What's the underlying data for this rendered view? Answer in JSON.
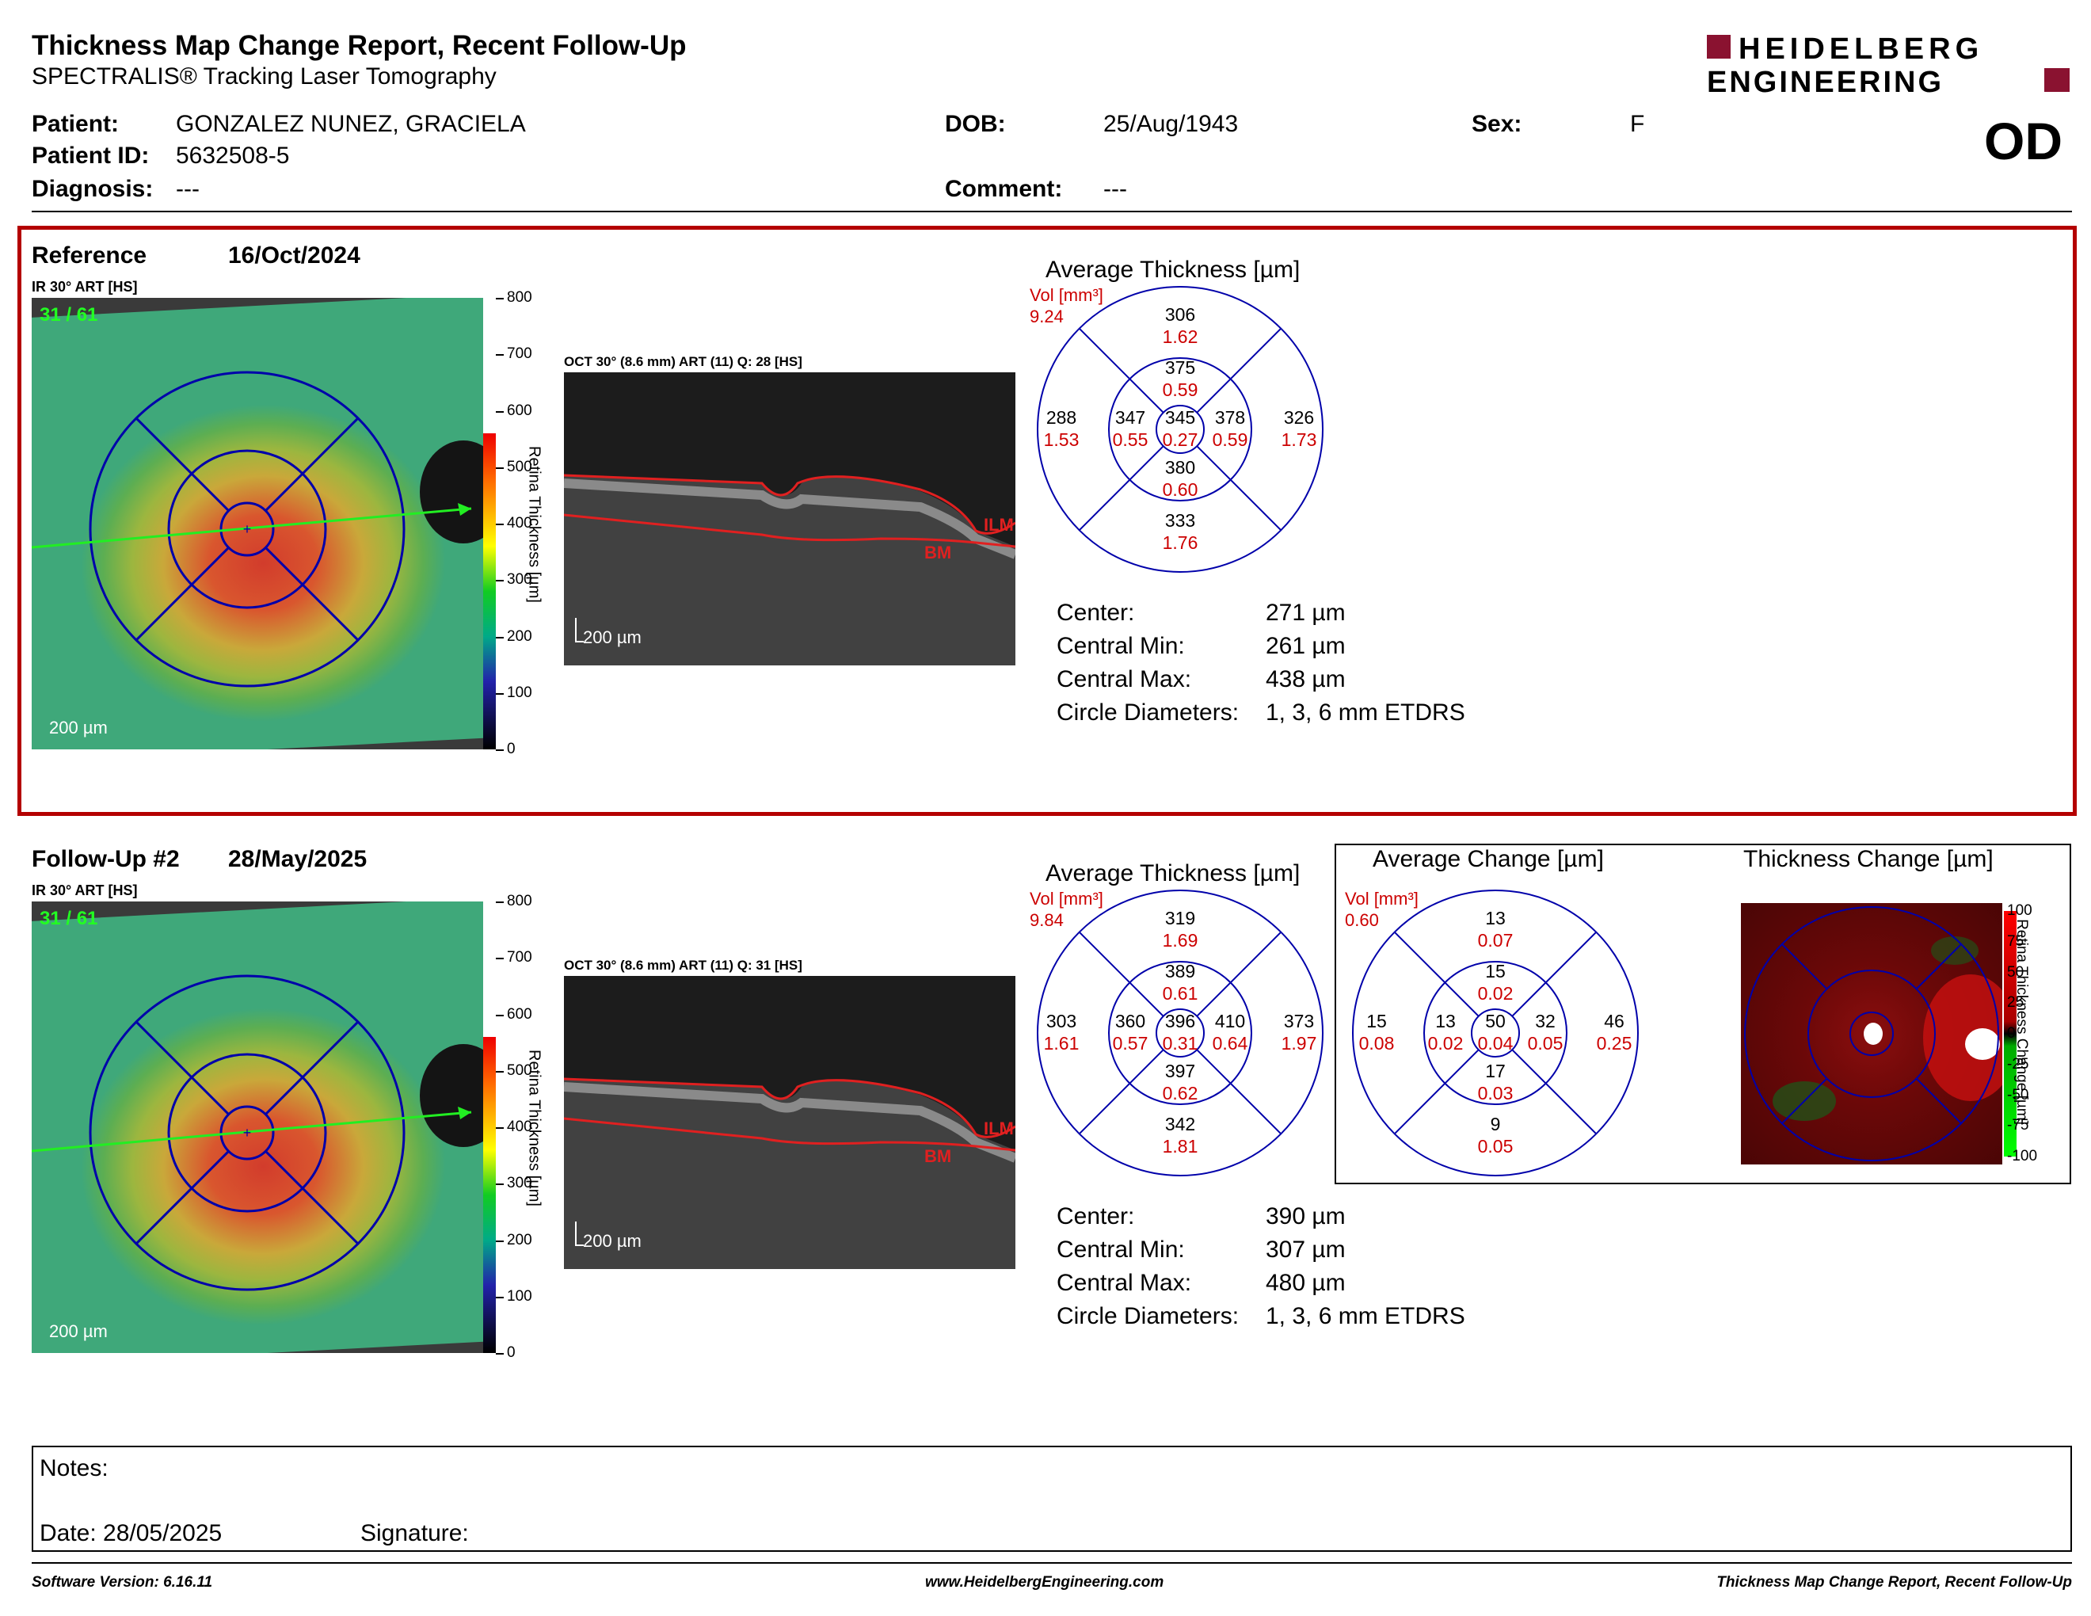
{
  "header": {
    "title": "Thickness Map Change Report, Recent Follow-Up",
    "subtitle": "SPECTRALIS® Tracking Laser Tomography",
    "logo_line1": "HEIDELBERG",
    "logo_line2": "ENGINEERING"
  },
  "patient": {
    "patient_label": "Patient:",
    "patient_value": "GONZALEZ NUNEZ, GRACIELA",
    "id_label": "Patient ID:",
    "id_value": "5632508-5",
    "diag_label": "Diagnosis:",
    "diag_value": "---",
    "dob_label": "DOB:",
    "dob_value": "25/Aug/1943",
    "comment_label": "Comment:",
    "comment_value": "---",
    "sex_label": "Sex:",
    "sex_value": "F",
    "eye": "OD"
  },
  "reference": {
    "label": "Reference",
    "date": "16/Oct/2024",
    "ir_label": "IR 30° ART [HS]",
    "ir_counter": "31 / 61",
    "oct_label": "OCT 30° (8.6 mm) ART (11) Q: 28 [HS]",
    "oct_scale": "200 µm",
    "ir_scale": "200 µm",
    "avg_title": "Average Thickness [µm]",
    "vol_label": "Vol [mm³]",
    "vol_total": "9.24",
    "grid": {
      "center": [
        "345",
        "0.27"
      ],
      "inner_top": [
        "375",
        "0.59"
      ],
      "inner_left": [
        "347",
        "0.55"
      ],
      "inner_right": [
        "378",
        "0.59"
      ],
      "inner_bottom": [
        "380",
        "0.60"
      ],
      "outer_top": [
        "306",
        "1.62"
      ],
      "outer_left": [
        "288",
        "1.53"
      ],
      "outer_right": [
        "326",
        "1.73"
      ],
      "outer_bottom": [
        "333",
        "1.76"
      ]
    },
    "stats": {
      "center_label": "Center:",
      "center_value": "271 µm",
      "min_label": "Central Min:",
      "min_value": "261 µm",
      "max_label": "Central Max:",
      "max_value": "438 µm",
      "diam_label": "Circle Diameters:",
      "diam_value": "1, 3, 6 mm ETDRS"
    }
  },
  "followup": {
    "label": "Follow-Up #2",
    "date": "28/May/2025",
    "ir_label": "IR 30° ART [HS]",
    "ir_counter": "31 / 61",
    "oct_label": "OCT 30° (8.6 mm) ART (11) Q: 31 [HS]",
    "oct_scale": "200 µm",
    "ir_scale": "200 µm",
    "avg_title": "Average Thickness [µm]",
    "vol_label": "Vol [mm³]",
    "vol_total": "9.84",
    "grid": {
      "center": [
        "396",
        "0.31"
      ],
      "inner_top": [
        "389",
        "0.61"
      ],
      "inner_left": [
        "360",
        "0.57"
      ],
      "inner_right": [
        "410",
        "0.64"
      ],
      "inner_bottom": [
        "397",
        "0.62"
      ],
      "outer_top": [
        "319",
        "1.69"
      ],
      "outer_left": [
        "303",
        "1.61"
      ],
      "outer_right": [
        "373",
        "1.97"
      ],
      "outer_bottom": [
        "342",
        "1.81"
      ]
    },
    "stats": {
      "center_label": "Center:",
      "center_value": "390 µm",
      "min_label": "Central Min:",
      "min_value": "307 µm",
      "max_label": "Central Max:",
      "max_value": "480 µm",
      "diam_label": "Circle Diameters:",
      "diam_value": "1, 3, 6 mm ETDRS"
    }
  },
  "change": {
    "avg_title": "Average Change [µm]",
    "vol_label": "Vol [mm³]",
    "vol_total": "0.60",
    "grid": {
      "center": [
        "50",
        "0.04"
      ],
      "inner_top": [
        "15",
        "0.02"
      ],
      "inner_left": [
        "13",
        "0.02"
      ],
      "inner_right": [
        "32",
        "0.05"
      ],
      "inner_bottom": [
        "17",
        "0.03"
      ],
      "outer_top": [
        "13",
        "0.07"
      ],
      "outer_left": [
        "15",
        "0.08"
      ],
      "outer_right": [
        "46",
        "0.25"
      ],
      "outer_bottom": [
        "9",
        "0.05"
      ]
    },
    "map_title": "Thickness Change [µm]",
    "bar_label": "Retina Thickness Change [µm]",
    "bar_ticks": [
      "100",
      "75",
      "50",
      "25",
      "0",
      "-25",
      "-50",
      "-75",
      "-100"
    ]
  },
  "colorbar": {
    "label": "Retina Thickness [µm]",
    "ticks": [
      "800",
      "700",
      "600",
      "500",
      "400",
      "300",
      "200",
      "100",
      "0"
    ]
  },
  "oct_labels": {
    "ilm": "ILM",
    "bm": "BM",
    "cut": "m"
  },
  "notes": {
    "notes_label": "Notes:",
    "date_label": "Date: 28/05/2025",
    "signature_label": "Signature:"
  },
  "footer": {
    "left": "Software Version: 6.16.11",
    "center": "www.HeidelbergEngineering.com",
    "right": "Thickness Map Change Report, Recent Follow-Up"
  },
  "colors": {
    "accent": "#b40000",
    "grid_blue": "#0000aa",
    "vol_red": "#cc0000"
  }
}
